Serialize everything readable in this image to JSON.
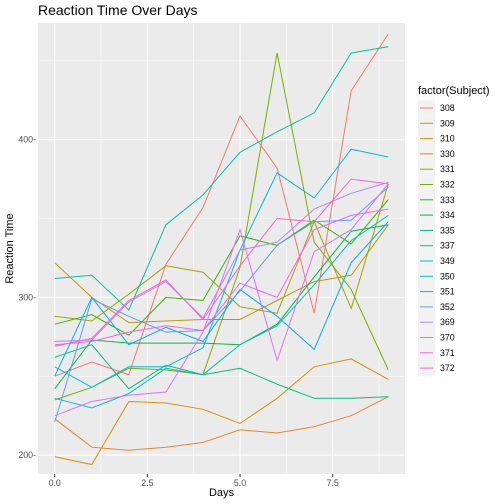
{
  "chart_data": {
    "type": "line",
    "title": "Reaction Time Over Days",
    "xlabel": "Days",
    "ylabel": "Reaction Time",
    "xlim": [
      -0.45,
      9.45
    ],
    "ylim": [
      188,
      474
    ],
    "x_ticks": [
      0,
      2.5,
      5,
      7.5
    ],
    "x_tick_labels": [
      "0.0",
      "2.5",
      "5.0",
      "7.5"
    ],
    "y_ticks": [
      200,
      300,
      400
    ],
    "y_tick_labels": [
      "200-",
      "300-",
      "400-"
    ],
    "grid": true,
    "legend_position": "right",
    "legend_title": "factor(Subject)",
    "x": [
      0,
      1,
      2,
      3,
      4,
      5,
      6,
      7,
      8,
      9
    ],
    "series": [
      {
        "name": "308",
        "color": "#F8766D",
        "values": [
          250,
          259,
          251,
          321,
          357,
          415,
          382,
          290,
          431,
          467
        ]
      },
      {
        "name": "309",
        "color": "#E98529",
        "values": [
          223,
          205,
          203,
          205,
          208,
          216,
          214,
          218,
          225,
          237
        ]
      },
      {
        "name": "310",
        "color": "#D89000",
        "values": [
          199,
          194,
          234,
          233,
          229,
          220,
          236,
          256,
          261,
          248
        ]
      },
      {
        "name": "330",
        "color": "#C09B00",
        "values": [
          322,
          300,
          284,
          285,
          286,
          286,
          298,
          310,
          314,
          346
        ]
      },
      {
        "name": "331",
        "color": "#A3A500",
        "values": [
          288,
          285,
          302,
          320,
          316,
          294,
          290,
          348,
          293,
          372
        ]
      },
      {
        "name": "332",
        "color": "#7CAE00",
        "values": [
          235,
          243,
          255,
          254,
          251,
          319,
          455,
          335,
          305,
          254
        ]
      },
      {
        "name": "333",
        "color": "#39B600",
        "values": [
          283,
          289,
          276,
          300,
          298,
          339,
          333,
          349,
          334,
          362
        ]
      },
      {
        "name": "334",
        "color": "#00BB4E",
        "values": [
          242,
          273,
          271,
          271,
          271,
          270,
          283,
          313,
          342,
          346
        ]
      },
      {
        "name": "335",
        "color": "#00BF7D",
        "values": [
          262,
          270,
          242,
          257,
          251,
          255,
          245,
          236,
          236,
          237
        ]
      },
      {
        "name": "337",
        "color": "#00C1A3",
        "values": [
          312,
          314,
          292,
          346,
          365,
          392,
          405,
          417,
          455,
          459
        ]
      },
      {
        "name": "349",
        "color": "#00BFC4",
        "values": [
          236,
          230,
          239,
          255,
          251,
          270,
          282,
          308,
          336,
          352
        ]
      },
      {
        "name": "350",
        "color": "#00B9E3",
        "values": [
          256,
          243,
          256,
          256,
          268,
          330,
          379,
          363,
          394,
          389
        ]
      },
      {
        "name": "351",
        "color": "#00ADFA",
        "values": [
          250,
          300,
          270,
          281,
          272,
          305,
          288,
          267,
          322,
          348
        ]
      },
      {
        "name": "352",
        "color": "#619CFF",
        "values": [
          221,
          299,
          288,
          278,
          279,
          304,
          333,
          348,
          349,
          370
        ]
      },
      {
        "name": "369",
        "color": "#AE87FF",
        "values": [
          272,
          273,
          297,
          310,
          287,
          330,
          335,
          356,
          366,
          373
        ]
      },
      {
        "name": "370",
        "color": "#DB72FB",
        "values": [
          225,
          234,
          238,
          240,
          278,
          343,
          260,
          329,
          343,
          372
        ]
      },
      {
        "name": "371",
        "color": "#F564E3",
        "values": [
          270,
          272,
          278,
          282,
          279,
          309,
          300,
          343,
          352,
          356
        ]
      },
      {
        "name": "372",
        "color": "#FF61C3",
        "values": [
          269,
          274,
          298,
          311,
          286,
          320,
          350,
          348,
          375,
          372
        ]
      }
    ]
  }
}
